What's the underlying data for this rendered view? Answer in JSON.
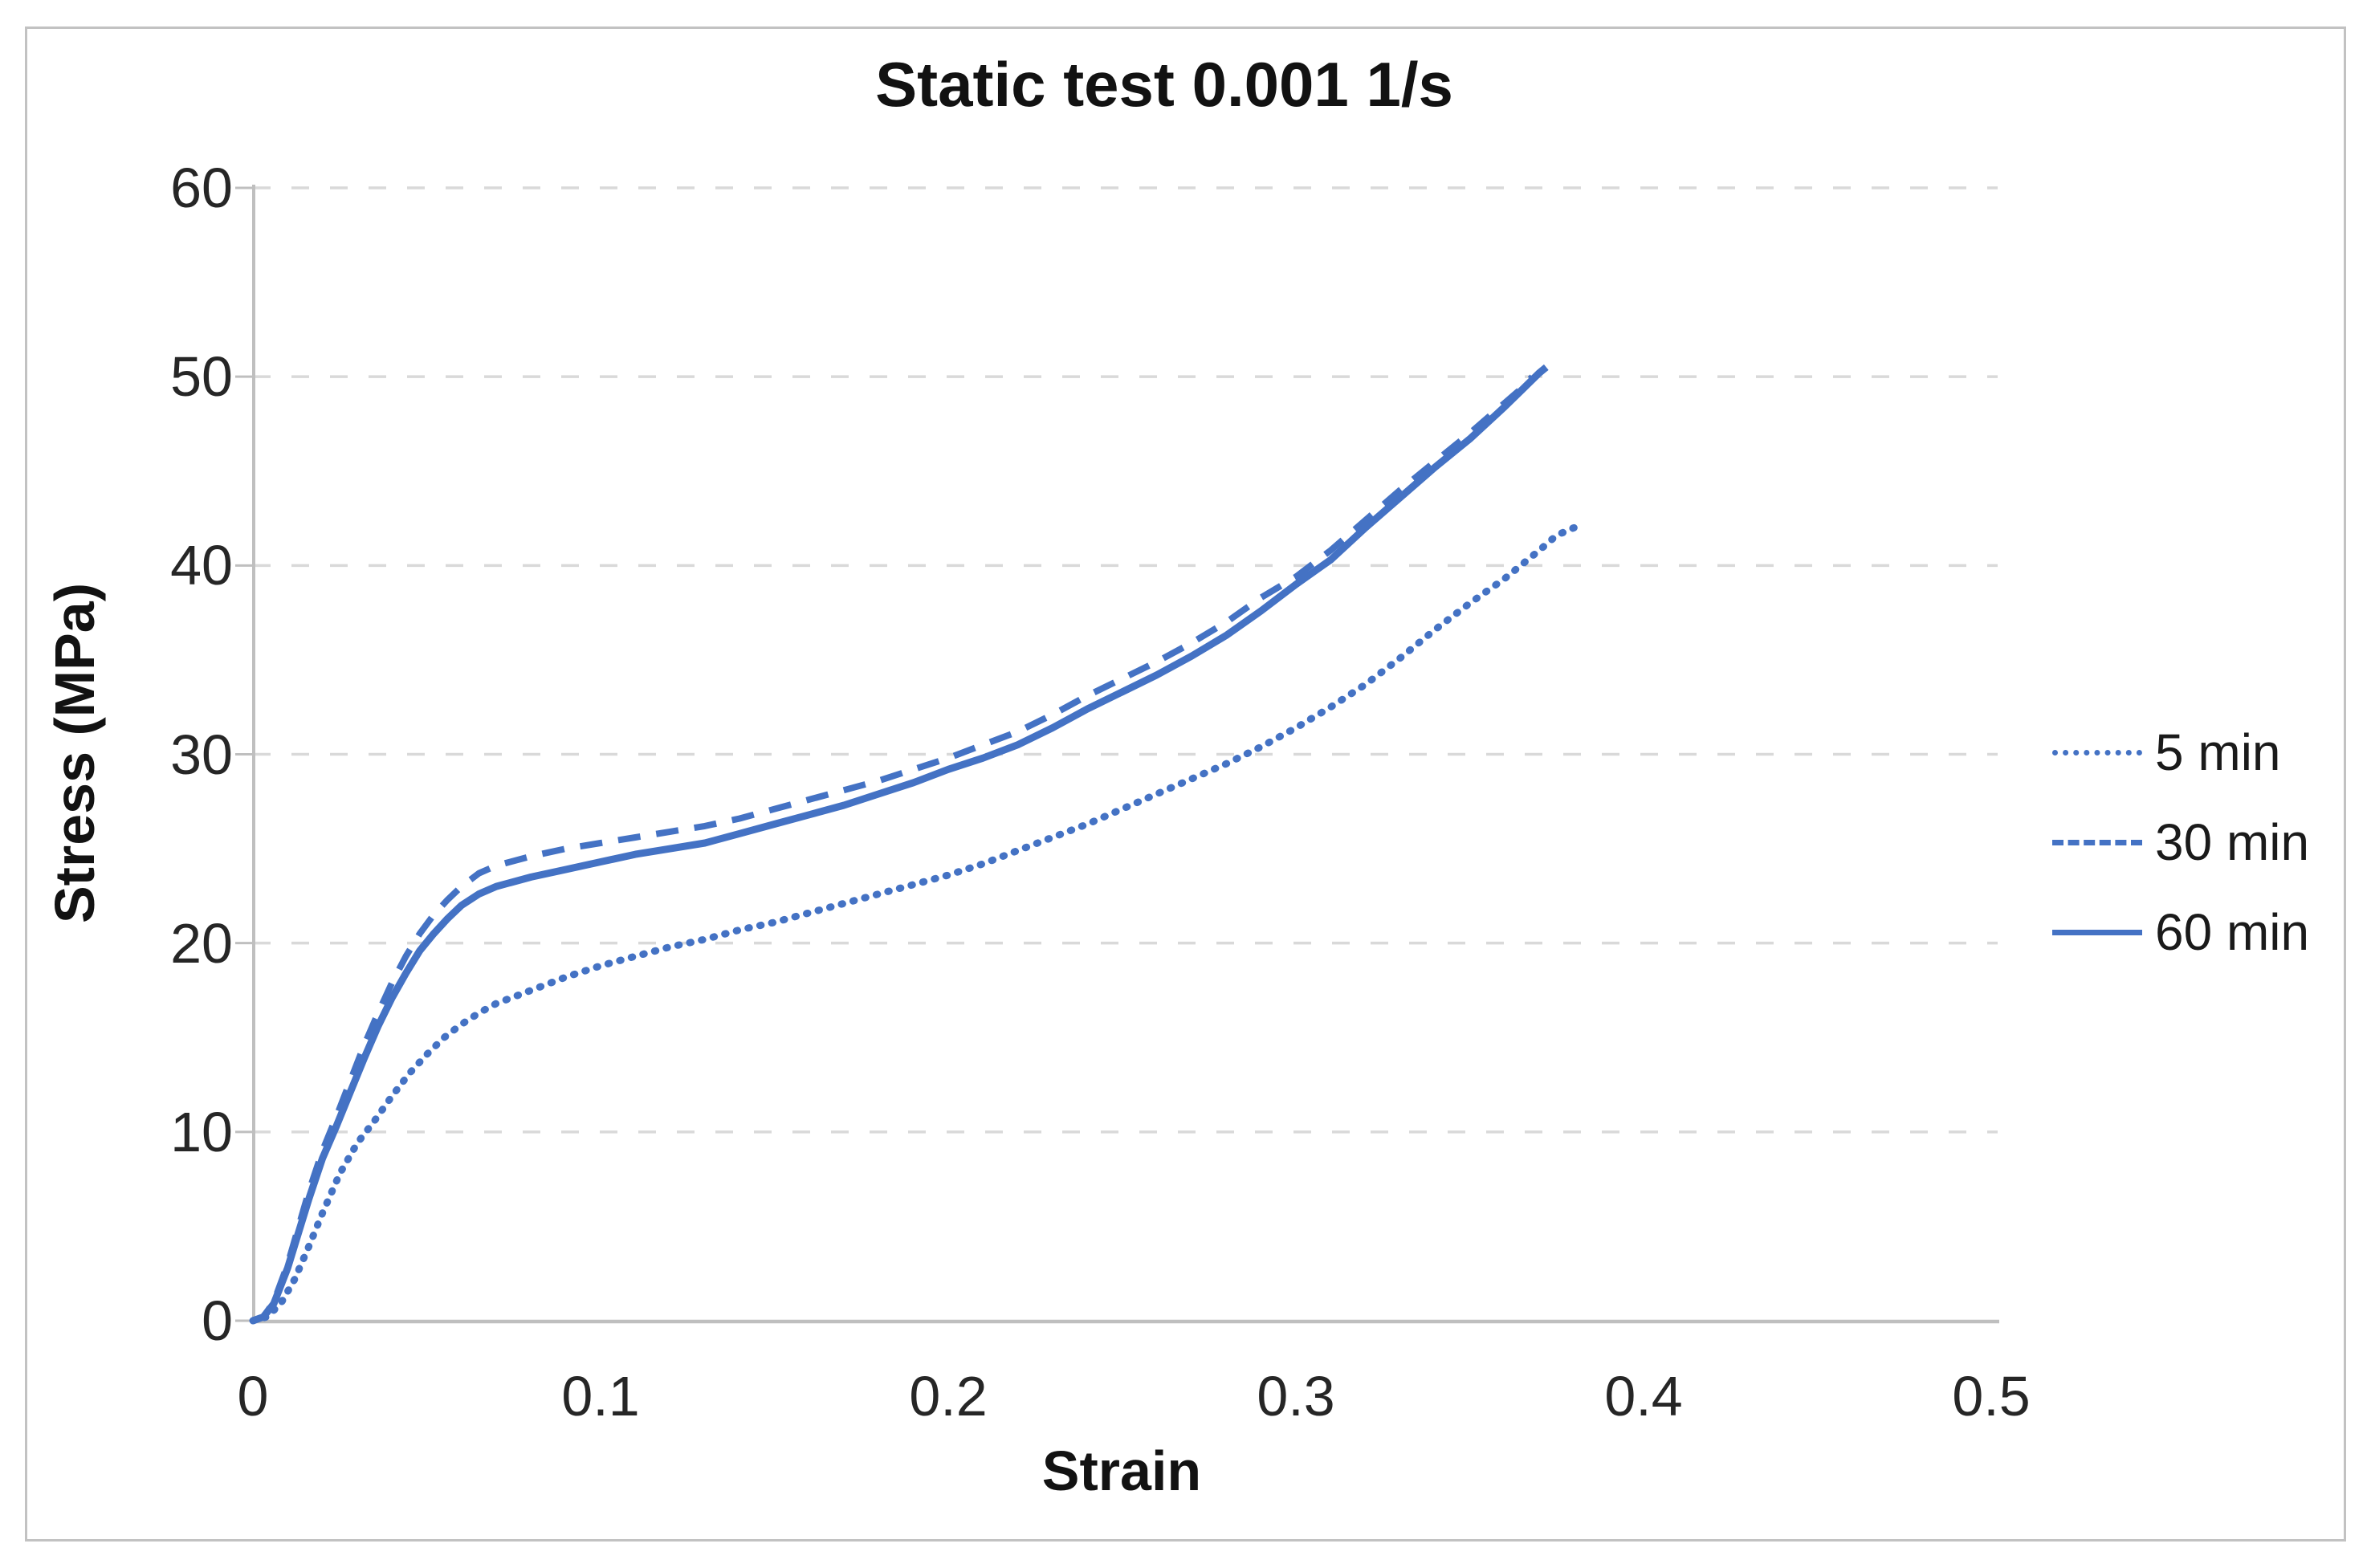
{
  "chart_data": {
    "type": "line",
    "title": "Static test 0.001 1/s",
    "xlabel": "Strain",
    "ylabel": "Stress (MPa)",
    "xlim": [
      0,
      0.5
    ],
    "ylim": [
      0,
      60
    ],
    "x_ticks": [
      "0",
      "0.1",
      "0.2",
      "0.3",
      "0.4",
      "0.5"
    ],
    "x_tick_values": [
      0,
      0.1,
      0.2,
      0.3,
      0.4,
      0.5
    ],
    "y_ticks": [
      "0",
      "10",
      "20",
      "30",
      "40",
      "50",
      "60"
    ],
    "y_tick_values": [
      0,
      10,
      20,
      30,
      40,
      50,
      60
    ],
    "grid": "horizontal-dashed",
    "legend_position": "right",
    "colors": {
      "series_blue": "#4472c4",
      "gridline": "#d9d9d9",
      "axis_line": "#bfbfbf",
      "tick_text": "#262626",
      "title_text": "#121212"
    },
    "series": [
      {
        "name": "5 min",
        "style": "dotted",
        "color": "#4472c4",
        "points": [
          [
            0,
            0
          ],
          [
            0.004,
            0.2
          ],
          [
            0.008,
            0.9
          ],
          [
            0.012,
            2.2
          ],
          [
            0.016,
            3.9
          ],
          [
            0.02,
            5.7
          ],
          [
            0.025,
            7.8
          ],
          [
            0.03,
            9.4
          ],
          [
            0.035,
            10.6
          ],
          [
            0.04,
            11.9
          ],
          [
            0.045,
            13.1
          ],
          [
            0.05,
            14.1
          ],
          [
            0.055,
            15.0
          ],
          [
            0.06,
            15.7
          ],
          [
            0.065,
            16.3
          ],
          [
            0.07,
            16.8
          ],
          [
            0.08,
            17.5
          ],
          [
            0.09,
            18.2
          ],
          [
            0.1,
            18.8
          ],
          [
            0.11,
            19.3
          ],
          [
            0.12,
            19.8
          ],
          [
            0.13,
            20.2
          ],
          [
            0.14,
            20.7
          ],
          [
            0.15,
            21.1
          ],
          [
            0.16,
            21.6
          ],
          [
            0.17,
            22.1
          ],
          [
            0.18,
            22.6
          ],
          [
            0.19,
            23.1
          ],
          [
            0.2,
            23.6
          ],
          [
            0.21,
            24.2
          ],
          [
            0.22,
            24.9
          ],
          [
            0.23,
            25.6
          ],
          [
            0.24,
            26.3
          ],
          [
            0.25,
            27.1
          ],
          [
            0.26,
            27.9
          ],
          [
            0.27,
            28.7
          ],
          [
            0.28,
            29.5
          ],
          [
            0.29,
            30.4
          ],
          [
            0.3,
            31.4
          ],
          [
            0.31,
            32.5
          ],
          [
            0.32,
            33.7
          ],
          [
            0.33,
            35.1
          ],
          [
            0.34,
            36.6
          ],
          [
            0.35,
            38.0
          ],
          [
            0.36,
            39.3
          ],
          [
            0.37,
            40.8
          ],
          [
            0.375,
            41.6
          ],
          [
            0.38,
            42.0
          ]
        ]
      },
      {
        "name": "30 min",
        "style": "dashed",
        "color": "#4472c4",
        "points": [
          [
            0,
            0
          ],
          [
            0.003,
            0.2
          ],
          [
            0.006,
            1.0
          ],
          [
            0.01,
            3.0
          ],
          [
            0.013,
            4.9
          ],
          [
            0.016,
            6.8
          ],
          [
            0.02,
            9.0
          ],
          [
            0.024,
            10.8
          ],
          [
            0.028,
            12.7
          ],
          [
            0.032,
            14.6
          ],
          [
            0.036,
            16.3
          ],
          [
            0.04,
            17.9
          ],
          [
            0.044,
            19.3
          ],
          [
            0.048,
            20.5
          ],
          [
            0.052,
            21.5
          ],
          [
            0.056,
            22.3
          ],
          [
            0.06,
            23.0
          ],
          [
            0.065,
            23.7
          ],
          [
            0.07,
            24.1
          ],
          [
            0.08,
            24.6
          ],
          [
            0.09,
            25.0
          ],
          [
            0.1,
            25.3
          ],
          [
            0.11,
            25.6
          ],
          [
            0.12,
            25.9
          ],
          [
            0.13,
            26.2
          ],
          [
            0.14,
            26.6
          ],
          [
            0.15,
            27.1
          ],
          [
            0.16,
            27.6
          ],
          [
            0.17,
            28.1
          ],
          [
            0.18,
            28.6
          ],
          [
            0.19,
            29.2
          ],
          [
            0.2,
            29.8
          ],
          [
            0.21,
            30.5
          ],
          [
            0.22,
            31.2
          ],
          [
            0.23,
            32.1
          ],
          [
            0.24,
            33.1
          ],
          [
            0.25,
            34.0
          ],
          [
            0.26,
            34.9
          ],
          [
            0.27,
            35.9
          ],
          [
            0.28,
            37.0
          ],
          [
            0.29,
            38.3
          ],
          [
            0.3,
            39.4
          ],
          [
            0.31,
            40.8
          ],
          [
            0.32,
            42.4
          ],
          [
            0.33,
            44.0
          ],
          [
            0.34,
            45.5
          ],
          [
            0.35,
            47.0
          ],
          [
            0.36,
            48.6
          ],
          [
            0.365,
            49.4
          ],
          [
            0.368,
            50.0
          ]
        ]
      },
      {
        "name": "60 min",
        "style": "solid",
        "color": "#4472c4",
        "points": [
          [
            0,
            0
          ],
          [
            0.003,
            0.2
          ],
          [
            0.006,
            0.9
          ],
          [
            0.01,
            2.8
          ],
          [
            0.013,
            4.6
          ],
          [
            0.016,
            6.4
          ],
          [
            0.02,
            8.6
          ],
          [
            0.024,
            10.3
          ],
          [
            0.028,
            12.1
          ],
          [
            0.032,
            13.9
          ],
          [
            0.036,
            15.6
          ],
          [
            0.04,
            17.1
          ],
          [
            0.044,
            18.4
          ],
          [
            0.048,
            19.6
          ],
          [
            0.052,
            20.5
          ],
          [
            0.056,
            21.3
          ],
          [
            0.06,
            22.0
          ],
          [
            0.065,
            22.6
          ],
          [
            0.07,
            23.0
          ],
          [
            0.08,
            23.5
          ],
          [
            0.09,
            23.9
          ],
          [
            0.1,
            24.3
          ],
          [
            0.11,
            24.7
          ],
          [
            0.12,
            25.0
          ],
          [
            0.13,
            25.3
          ],
          [
            0.14,
            25.8
          ],
          [
            0.15,
            26.3
          ],
          [
            0.16,
            26.8
          ],
          [
            0.17,
            27.3
          ],
          [
            0.18,
            27.9
          ],
          [
            0.19,
            28.5
          ],
          [
            0.2,
            29.2
          ],
          [
            0.21,
            29.8
          ],
          [
            0.22,
            30.5
          ],
          [
            0.23,
            31.4
          ],
          [
            0.24,
            32.4
          ],
          [
            0.25,
            33.3
          ],
          [
            0.26,
            34.2
          ],
          [
            0.27,
            35.2
          ],
          [
            0.28,
            36.3
          ],
          [
            0.29,
            37.6
          ],
          [
            0.3,
            39.0
          ],
          [
            0.31,
            40.3
          ],
          [
            0.32,
            42.0
          ],
          [
            0.33,
            43.6
          ],
          [
            0.34,
            45.2
          ],
          [
            0.35,
            46.7
          ],
          [
            0.36,
            48.4
          ],
          [
            0.365,
            49.3
          ],
          [
            0.37,
            50.2
          ],
          [
            0.372,
            50.5
          ]
        ]
      }
    ]
  }
}
